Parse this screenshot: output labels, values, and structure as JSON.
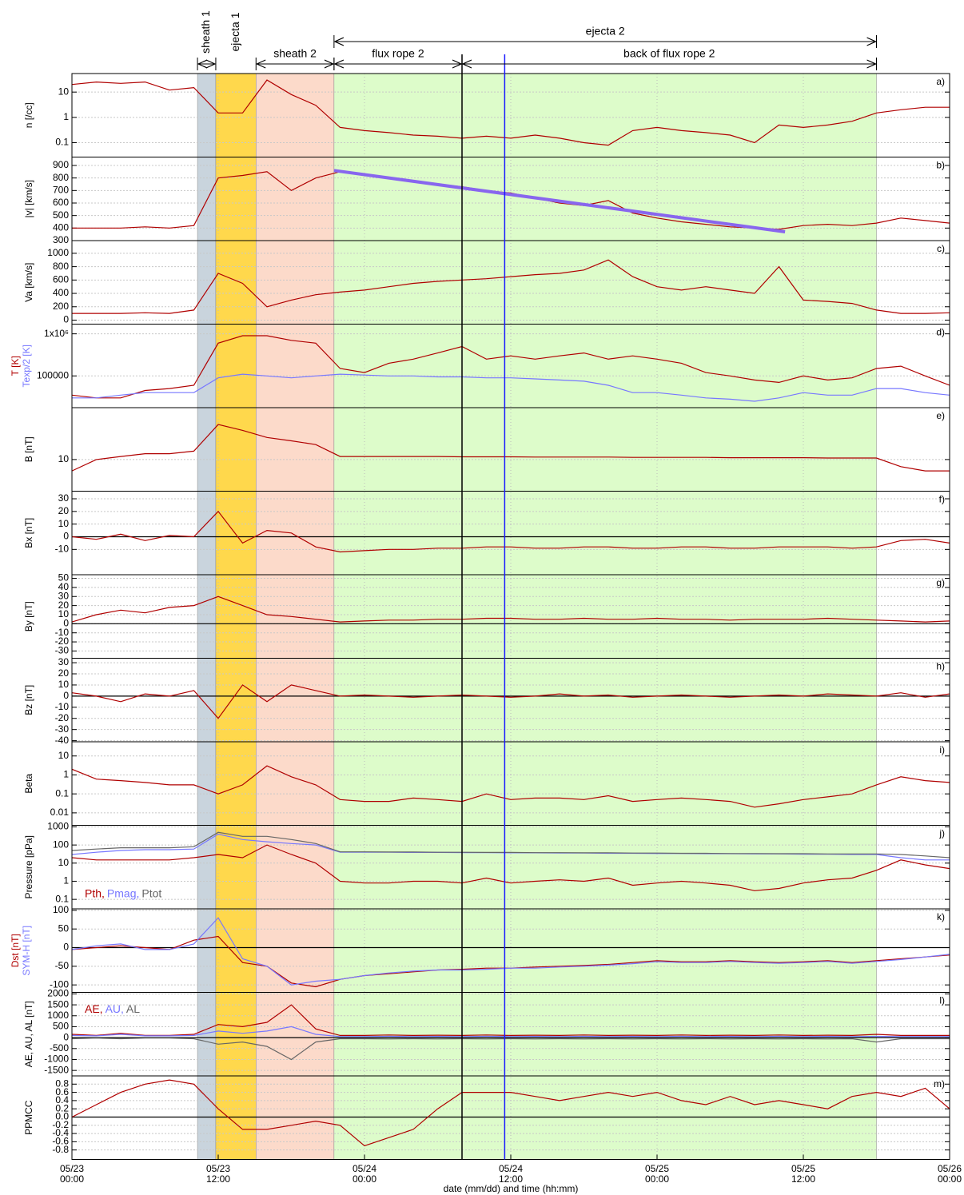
{
  "x": [
    0,
    2,
    4,
    6,
    8,
    10,
    12,
    14,
    16,
    18,
    20,
    22,
    24,
    26,
    28,
    30,
    32,
    34,
    36,
    38,
    40,
    42,
    44,
    46,
    48,
    50,
    52,
    54,
    56,
    58,
    60,
    62,
    64,
    66,
    68,
    70,
    72
  ],
  "xlim": [
    0,
    72
  ],
  "xticks": [
    {
      "value": 0,
      "label": "05/23 00:00"
    },
    {
      "value": 12,
      "label": "05/23 12:00"
    },
    {
      "value": 24,
      "label": "05/24 00:00"
    },
    {
      "value": 36,
      "label": "05/24 12:00"
    },
    {
      "value": 48,
      "label": "05/25 00:00"
    },
    {
      "value": 60,
      "label": "05/25 12:00"
    },
    {
      "value": 72,
      "label": "05/26 00:00"
    }
  ],
  "xlabel": "date (mm/dd) and time (hh:mm)",
  "regions": [
    {
      "start": 10.3,
      "end": 11.8,
      "color": "#c9d4dd"
    },
    {
      "start": 11.8,
      "end": 15.1,
      "color": "#ffd84c"
    },
    {
      "start": 15.1,
      "end": 21.5,
      "color": "#fcdaca"
    },
    {
      "start": 21.5,
      "end": 66.0,
      "color": "#ddfcca"
    }
  ],
  "markers": [
    {
      "value": 32.0,
      "color": "#000000"
    },
    {
      "value": 35.5,
      "color": "#1a1aff"
    }
  ],
  "annotations": {
    "upper": [
      {
        "label": "ejecta 2",
        "start": 21.5,
        "end": 66.0
      }
    ],
    "lower": [
      {
        "label": "sheath 2",
        "start": 15.1,
        "end": 21.5
      },
      {
        "label": "flux rope 2",
        "start": 21.5,
        "end": 32.0
      },
      {
        "label": "back of flux rope 2",
        "start": 32.0,
        "end": 66.0
      }
    ],
    "vertical": [
      {
        "label": "sheath 1",
        "start": 10.3,
        "end": 11.8
      },
      {
        "label": "ejecta 1",
        "start": 11.8,
        "end": 15.1
      }
    ]
  },
  "chart_data": [
    {
      "type": "line",
      "label": "a)",
      "ylabel": "n [/cc]",
      "log": true,
      "ylim": [
        0.027,
        54
      ],
      "yticks": [
        0.1,
        1,
        10
      ],
      "series": [
        {
          "color": "#b00000",
          "values": [
            20,
            25,
            22,
            25,
            12,
            15,
            1.5,
            1.5,
            30,
            8,
            3,
            0.4,
            0.3,
            0.25,
            0.2,
            0.18,
            0.15,
            0.18,
            0.15,
            0.2,
            0.15,
            0.1,
            0.08,
            0.3,
            0.4,
            0.3,
            0.25,
            0.2,
            0.1,
            0.5,
            0.4,
            0.5,
            0.7,
            1.5,
            2,
            2.5,
            2.5
          ]
        }
      ]
    },
    {
      "type": "line",
      "label": "b)",
      "ylabel": "|v| [km/s]",
      "ylim": [
        300,
        967
      ],
      "yticks": [
        300,
        400,
        500,
        600,
        700,
        800,
        900
      ],
      "series": [
        {
          "color": "#b00000",
          "values": [
            400,
            400,
            400,
            410,
            400,
            420,
            800,
            820,
            850,
            700,
            800,
            850,
            830,
            800,
            780,
            750,
            730,
            700,
            680,
            640,
            600,
            580,
            620,
            520,
            480,
            450,
            430,
            410,
            400,
            390,
            420,
            430,
            420,
            440,
            480,
            460,
            440
          ]
        },
        {
          "color": "#8866ee",
          "x": [
            21.5,
            58.5
          ],
          "values": [
            860,
            370
          ]
        }
      ]
    },
    {
      "type": "line",
      "label": "c)",
      "ylabel": "Va [km/s]",
      "ylim": [
        -60,
        1190
      ],
      "yticks": [
        0,
        200,
        400,
        600,
        800,
        1000
      ],
      "series": [
        {
          "color": "#b00000",
          "values": [
            100,
            100,
            100,
            110,
            100,
            150,
            700,
            550,
            200,
            300,
            380,
            420,
            450,
            500,
            550,
            580,
            600,
            620,
            650,
            680,
            700,
            750,
            900,
            650,
            500,
            450,
            500,
            450,
            400,
            800,
            300,
            280,
            250,
            150,
            100,
            100,
            110
          ]
        }
      ]
    },
    {
      "type": "line",
      "label": "d)",
      "log": true,
      "ylim": [
        17600,
        1700000
      ],
      "yticks": [
        100000,
        {
          "value": 1000000,
          "label": "1x10⁶"
        }
      ],
      "series": [
        {
          "name": "T [K]",
          "color": "#b00000",
          "values": [
            35000,
            30000,
            30000,
            45000,
            50000,
            60000,
            600000,
            900000,
            900000,
            700000,
            600000,
            150000,
            120000,
            200000,
            250000,
            350000,
            500000,
            250000,
            300000,
            250000,
            300000,
            350000,
            250000,
            300000,
            250000,
            200000,
            120000,
            100000,
            80000,
            70000,
            100000,
            80000,
            90000,
            150000,
            170000,
            100000,
            60000
          ]
        },
        {
          "name": "Texp/2 [K]",
          "color": "#7777ff",
          "values": [
            30000,
            30000,
            35000,
            40000,
            40000,
            40000,
            90000,
            110000,
            100000,
            90000,
            100000,
            110000,
            105000,
            100000,
            100000,
            95000,
            95000,
            90000,
            90000,
            85000,
            80000,
            75000,
            60000,
            40000,
            40000,
            35000,
            30000,
            28000,
            25000,
            30000,
            40000,
            35000,
            35000,
            50000,
            50000,
            40000,
            35000
          ]
        }
      ]
    },
    {
      "type": "line",
      "label": "e)",
      "ylabel": "B [nT]",
      "log": true,
      "ylim": [
        3.7,
        51
      ],
      "yticks": [
        10
      ],
      "series": [
        {
          "color": "#b00000",
          "values": [
            7,
            10,
            11,
            12,
            12,
            13,
            30,
            25,
            20,
            18,
            16,
            11,
            11,
            11,
            11,
            11,
            10.9,
            10.9,
            10.9,
            10.8,
            10.8,
            10.8,
            10.8,
            10.7,
            10.7,
            10.7,
            10.7,
            10.6,
            10.6,
            10.6,
            10.6,
            10.5,
            10.5,
            10.5,
            8,
            7,
            7
          ]
        }
      ]
    },
    {
      "type": "line",
      "label": "f)",
      "ylabel": "Bx [nT]",
      "zero_line": true,
      "ylim": [
        -30,
        36
      ],
      "yticks": [
        -10,
        0,
        10,
        20,
        30
      ],
      "series": [
        {
          "color": "#b00000",
          "values": [
            0,
            -2,
            2,
            -3,
            1,
            0,
            20,
            -5,
            5,
            3,
            -8,
            -12,
            -11,
            -10,
            -10,
            -9,
            -9,
            -8,
            -8,
            -9,
            -9,
            -8,
            -8,
            -9,
            -9,
            -8,
            -8,
            -9,
            -9,
            -8,
            -8,
            -8,
            -9,
            -8,
            -3,
            -2,
            -5
          ]
        }
      ]
    },
    {
      "type": "line",
      "label": "g)",
      "ylabel": "By [nT]",
      "zero_line": true,
      "ylim": [
        -38,
        54
      ],
      "yticks": [
        -30,
        -20,
        -10,
        0,
        10,
        20,
        30,
        40,
        50
      ],
      "series": [
        {
          "color": "#b00000",
          "values": [
            2,
            10,
            15,
            12,
            18,
            20,
            30,
            20,
            10,
            8,
            5,
            2,
            3,
            4,
            4,
            5,
            5,
            6,
            6,
            5,
            5,
            6,
            5,
            5,
            6,
            5,
            5,
            4,
            5,
            5,
            5,
            6,
            5,
            4,
            3,
            2,
            3
          ]
        }
      ]
    },
    {
      "type": "line",
      "label": "h)",
      "ylabel": "Bz [nT]",
      "zero_line": true,
      "ylim": [
        -41,
        34
      ],
      "yticks": [
        -40,
        -30,
        -20,
        -10,
        0,
        10,
        20,
        30
      ],
      "series": [
        {
          "color": "#b00000",
          "values": [
            3,
            0,
            -5,
            2,
            0,
            5,
            -20,
            10,
            -5,
            10,
            5,
            0,
            1,
            0,
            -1,
            0,
            1,
            0,
            -1,
            0,
            2,
            0,
            1,
            -1,
            0,
            1,
            0,
            -1,
            0,
            1,
            0,
            2,
            1,
            0,
            3,
            -1,
            2
          ]
        }
      ]
    },
    {
      "type": "line",
      "label": "i)",
      "ylabel": "Beta",
      "log": true,
      "ylim": [
        0.0022,
        56
      ],
      "yticks": [
        0.01,
        0.1,
        1,
        10
      ],
      "series": [
        {
          "color": "#b00000",
          "values": [
            2,
            0.6,
            0.5,
            0.4,
            0.3,
            0.3,
            0.1,
            0.3,
            3,
            0.8,
            0.3,
            0.05,
            0.04,
            0.04,
            0.06,
            0.05,
            0.04,
            0.1,
            0.05,
            0.06,
            0.06,
            0.05,
            0.08,
            0.04,
            0.05,
            0.06,
            0.05,
            0.04,
            0.02,
            0.03,
            0.05,
            0.07,
            0.1,
            0.3,
            0.8,
            0.5,
            0.4
          ]
        }
      ]
    },
    {
      "type": "line",
      "label": "j)",
      "ylabel": "Pressure [pPa]",
      "log": true,
      "legend": "lower left",
      "ylim": [
        0.03,
        1220
      ],
      "yticks": [
        0.1,
        1,
        10,
        100,
        1000
      ],
      "series": [
        {
          "name": "Pth,",
          "color": "#b00000",
          "values": [
            20,
            15,
            15,
            15,
            15,
            20,
            30,
            20,
            100,
            30,
            10,
            1,
            0.8,
            0.8,
            1,
            1,
            0.8,
            1.5,
            0.8,
            1,
            1.2,
            1,
            1.5,
            0.6,
            0.8,
            1,
            0.8,
            0.6,
            0.3,
            0.4,
            0.8,
            1.2,
            1.5,
            4,
            15,
            8,
            5
          ]
        },
        {
          "name": "Pmag,",
          "color": "#7777ff",
          "values": [
            30,
            40,
            50,
            55,
            55,
            60,
            400,
            200,
            150,
            120,
            100,
            40,
            40,
            40,
            39,
            39,
            38,
            38,
            37,
            37,
            36,
            36,
            35,
            35,
            34,
            34,
            33,
            33,
            32,
            32,
            31,
            31,
            30,
            30,
            20,
            15,
            15
          ]
        },
        {
          "name": "Ptot",
          "color": "#666666",
          "values": [
            50,
            60,
            70,
            70,
            70,
            80,
            500,
            300,
            300,
            200,
            120,
            42,
            42,
            41,
            41,
            40,
            40,
            39,
            39,
            38,
            38,
            37,
            37,
            36,
            36,
            35,
            35,
            34,
            34,
            33,
            33,
            32,
            32,
            32,
            30,
            25,
            20
          ]
        }
      ]
    },
    {
      "type": "line",
      "label": "k)",
      "zero_line": true,
      "ylim": [
        -120,
        104
      ],
      "yticks": [
        -100,
        -50,
        0,
        50,
        100
      ],
      "series": [
        {
          "name": "Dst [nT]",
          "color": "#b00000",
          "values": [
            -5,
            0,
            5,
            0,
            -5,
            20,
            30,
            -40,
            -50,
            -95,
            -105,
            -85,
            -75,
            -70,
            -65,
            -60,
            -58,
            -55,
            -55,
            -52,
            -50,
            -48,
            -45,
            -40,
            -35,
            -38,
            -38,
            -35,
            -38,
            -40,
            -38,
            -35,
            -40,
            -35,
            -30,
            -25,
            -20
          ]
        },
        {
          "name": "SYM-H [nT]",
          "color": "#7777ff",
          "values": [
            -5,
            5,
            10,
            -5,
            -5,
            10,
            80,
            -30,
            -50,
            -100,
            -90,
            -85,
            -75,
            -68,
            -63,
            -60,
            -60,
            -58,
            -55,
            -55,
            -52,
            -50,
            -47,
            -43,
            -38,
            -40,
            -40,
            -37,
            -40,
            -42,
            -40,
            -37,
            -42,
            -37,
            -32,
            -25,
            -18
          ]
        }
      ]
    },
    {
      "type": "line",
      "label": "l)",
      "ylabel": "AE, AU, AL [nT]",
      "zero_line": true,
      "legend": "upper left",
      "ylim": [
        -1750,
        2070
      ],
      "yticks": [
        -1500,
        -1000,
        -500,
        0,
        500,
        1000,
        1500,
        2000
      ],
      "series": [
        {
          "name": "AE,",
          "color": "#b00000",
          "values": [
            150,
            100,
            200,
            100,
            100,
            150,
            600,
            500,
            700,
            1500,
            400,
            100,
            100,
            120,
            100,
            110,
            100,
            120,
            100,
            110,
            100,
            120,
            100,
            110,
            100,
            120,
            100,
            110,
            100,
            120,
            100,
            110,
            100,
            150,
            100,
            100,
            100
          ]
        },
        {
          "name": "AU,",
          "color": "#7777ff",
          "values": [
            100,
            80,
            150,
            80,
            80,
            100,
            300,
            200,
            300,
            500,
            150,
            50,
            50,
            60,
            50,
            55,
            50,
            60,
            50,
            55,
            50,
            60,
            50,
            55,
            50,
            60,
            50,
            55,
            50,
            60,
            50,
            55,
            50,
            60,
            50,
            50,
            50
          ]
        },
        {
          "name": "AL",
          "color": "#666666",
          "values": [
            -50,
            -20,
            -50,
            -20,
            -20,
            -50,
            -300,
            -200,
            -400,
            -1000,
            -200,
            -50,
            -50,
            -60,
            -50,
            -60,
            -50,
            -60,
            -50,
            -60,
            -50,
            -60,
            -50,
            -60,
            -50,
            -60,
            -50,
            -60,
            -50,
            -60,
            -50,
            -60,
            -50,
            -200,
            -50,
            -50,
            -50
          ]
        }
      ]
    },
    {
      "type": "line",
      "label": "m)",
      "ylabel": "PPMCC",
      "zero_line": true,
      "ylim": [
        -1.03,
        1.0
      ],
      "yticks": [
        -0.8,
        -0.6,
        -0.4,
        -0.2,
        {
          "value": 0,
          "label": "0.0"
        },
        0.2,
        0.4,
        0.6,
        0.8
      ],
      "series": [
        {
          "color": "#b00000",
          "values": [
            0,
            0.3,
            0.6,
            0.8,
            0.9,
            0.8,
            0.2,
            -0.3,
            -0.3,
            -0.2,
            -0.1,
            -0.2,
            -0.7,
            -0.5,
            -0.3,
            0.2,
            0.6,
            0.6,
            0.6,
            0.5,
            0.4,
            0.5,
            0.6,
            0.5,
            0.6,
            0.4,
            0.3,
            0.5,
            0.3,
            0.4,
            0.3,
            0.2,
            0.5,
            0.6,
            0.5,
            0.7,
            0.2
          ]
        }
      ]
    }
  ]
}
